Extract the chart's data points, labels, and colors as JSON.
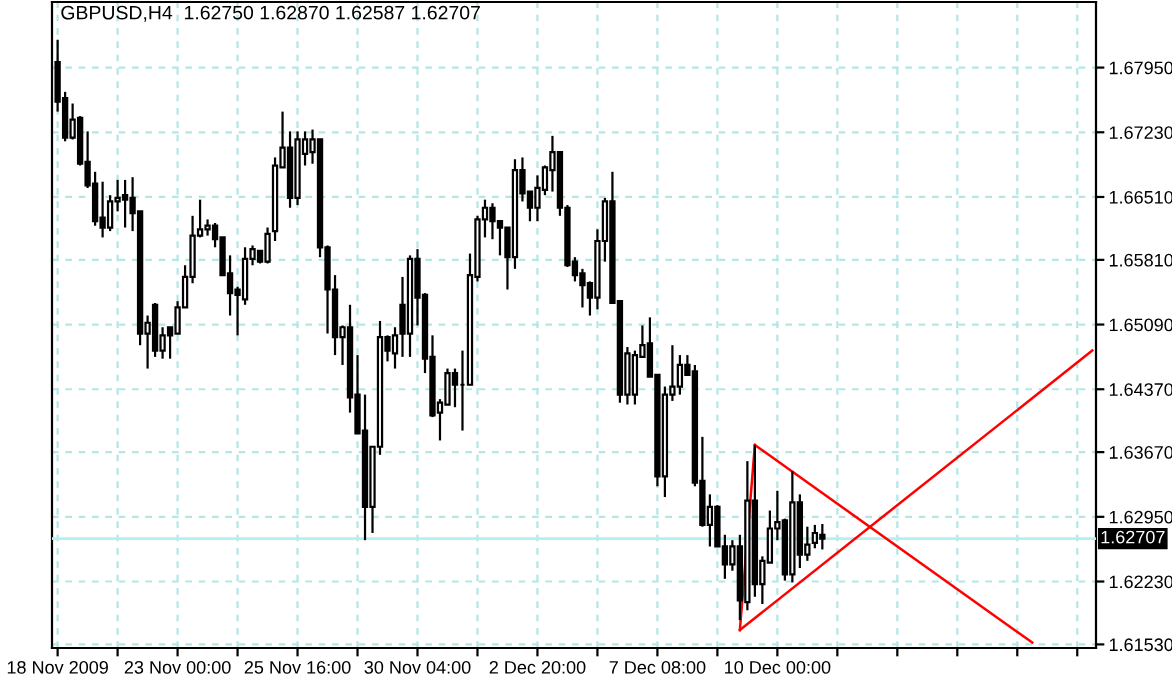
{
  "chart_data": {
    "type": "candlestick",
    "title": "GBPUSD,H4  1.62750 1.62870 1.62587 1.62707",
    "categories": [
      "18 Nov 2009",
      null,
      null,
      null,
      null,
      null,
      null,
      null,
      null,
      null,
      null,
      null,
      null,
      null,
      null,
      null,
      "23 Nov 00:00",
      null,
      null,
      null,
      null,
      null,
      null,
      null,
      null,
      null,
      null,
      null,
      null,
      null,
      null,
      null,
      "25 Nov 16:00",
      null,
      null,
      null,
      null,
      null,
      null,
      null,
      null,
      null,
      null,
      null,
      null,
      null,
      null,
      null,
      "30 Nov 04:00",
      null,
      null,
      null,
      null,
      null,
      null,
      null,
      null,
      null,
      null,
      null,
      null,
      null,
      null,
      null,
      "2 Dec 20:00",
      null,
      null,
      null,
      null,
      null,
      null,
      null,
      null,
      null,
      null,
      null,
      null,
      null,
      null,
      null,
      "7 Dec 08:00",
      null,
      null,
      null,
      null,
      null,
      null,
      null,
      null,
      null,
      null,
      null,
      null,
      null,
      null,
      null,
      "10 Dec 00:00",
      null,
      null,
      null,
      null,
      null,
      null,
      null,
      null,
      null,
      null,
      null,
      null,
      null,
      null,
      null,
      null,
      null,
      null,
      null,
      null,
      null,
      null,
      null,
      null,
      null,
      null,
      null,
      null,
      null,
      null,
      null,
      null,
      null,
      null,
      null,
      null,
      null,
      null,
      null,
      null,
      null,
      null
    ],
    "ohlc": [
      [
        1.6801,
        1.6826,
        1.6746,
        1.6757
      ],
      [
        1.6761,
        1.6768,
        1.6713,
        1.6717
      ],
      [
        1.6717,
        1.6755,
        1.6715,
        1.6737
      ],
      [
        1.6739,
        1.6741,
        1.6686,
        1.6688
      ],
      [
        1.669,
        1.6724,
        1.6661,
        1.6664
      ],
      [
        1.6666,
        1.6679,
        1.6619,
        1.6624
      ],
      [
        1.6628,
        1.6668,
        1.6606,
        1.6617
      ],
      [
        1.6617,
        1.6653,
        1.6613,
        1.6646
      ],
      [
        1.6646,
        1.667,
        1.6635,
        1.665
      ],
      [
        1.6653,
        1.667,
        1.6617,
        1.6648
      ],
      [
        1.665,
        1.6673,
        1.6613,
        1.6633
      ],
      [
        1.6635,
        1.6635,
        1.6486,
        1.6499
      ],
      [
        1.6499,
        1.6519,
        1.646,
        1.6511
      ],
      [
        1.6531,
        1.6533,
        1.6473,
        1.648
      ],
      [
        1.648,
        1.6506,
        1.6471,
        1.6497
      ],
      [
        1.6506,
        1.6506,
        1.6471,
        1.6497
      ],
      [
        1.6499,
        1.6535,
        1.6499,
        1.6528
      ],
      [
        1.6528,
        1.6575,
        1.6528,
        1.6562
      ],
      [
        1.6562,
        1.663,
        1.6555,
        1.6608
      ],
      [
        1.6608,
        1.6648,
        1.6606,
        1.6615
      ],
      [
        1.6615,
        1.6626,
        1.6608,
        1.6619
      ],
      [
        1.6619,
        1.6622,
        1.6595,
        1.6604
      ],
      [
        1.6606,
        1.6606,
        1.6564,
        1.6564
      ],
      [
        1.6566,
        1.6586,
        1.6519,
        1.6544
      ],
      [
        1.6548,
        1.6551,
        1.6497,
        1.6542
      ],
      [
        1.6537,
        1.6595,
        1.6531,
        1.6582
      ],
      [
        1.6582,
        1.6597,
        1.6575,
        1.6593
      ],
      [
        1.6591,
        1.6591,
        1.6577,
        1.6579
      ],
      [
        1.6579,
        1.6617,
        1.6577,
        1.661
      ],
      [
        1.6613,
        1.6695,
        1.6602,
        1.6686
      ],
      [
        1.6684,
        1.6746,
        1.6684,
        1.6706
      ],
      [
        1.6706,
        1.6724,
        1.6639,
        1.665
      ],
      [
        1.665,
        1.6724,
        1.6642,
        1.6715
      ],
      [
        1.6699,
        1.6724,
        1.6686,
        1.6715
      ],
      [
        1.6701,
        1.6726,
        1.6688,
        1.6715
      ],
      [
        1.6715,
        1.6715,
        1.6584,
        1.6595
      ],
      [
        1.6595,
        1.6597,
        1.6499,
        1.6548
      ],
      [
        1.6548,
        1.6564,
        1.6475,
        1.6495
      ],
      [
        1.6495,
        1.6508,
        1.6464,
        1.6506
      ],
      [
        1.6506,
        1.6531,
        1.6411,
        1.6428
      ],
      [
        1.6431,
        1.6475,
        1.6388,
        1.6388
      ],
      [
        1.6391,
        1.6431,
        1.6269,
        1.6306
      ],
      [
        1.6306,
        1.6373,
        1.6277,
        1.6373
      ],
      [
        1.6373,
        1.6513,
        1.6364,
        1.6495
      ],
      [
        1.6495,
        1.6497,
        1.6468,
        1.648
      ],
      [
        1.6477,
        1.6506,
        1.646,
        1.6497
      ],
      [
        1.6531,
        1.6562,
        1.6473,
        1.6499
      ],
      [
        1.6499,
        1.6586,
        1.6473,
        1.6582
      ],
      [
        1.6582,
        1.6593,
        1.6508,
        1.6539
      ],
      [
        1.6542,
        1.6544,
        1.6455,
        1.6471
      ],
      [
        1.6473,
        1.6497,
        1.6406,
        1.6408
      ],
      [
        1.6411,
        1.6426,
        1.638,
        1.6422
      ],
      [
        1.642,
        1.646,
        1.642,
        1.6455
      ],
      [
        1.6455,
        1.646,
        1.6417,
        1.6442
      ],
      [
        1.6442,
        1.648,
        1.6391,
        1.6442
      ],
      [
        1.6442,
        1.6588,
        1.6442,
        1.6564
      ],
      [
        1.6562,
        1.663,
        1.6557,
        1.6626
      ],
      [
        1.6626,
        1.6648,
        1.6606,
        1.6639
      ],
      [
        1.6639,
        1.6644,
        1.6604,
        1.6624
      ],
      [
        1.6624,
        1.6624,
        1.6586,
        1.6617
      ],
      [
        1.6617,
        1.6617,
        1.6548,
        1.6584
      ],
      [
        1.6584,
        1.6693,
        1.6571,
        1.6681
      ],
      [
        1.6681,
        1.6695,
        1.6646,
        1.6655
      ],
      [
        1.6657,
        1.6657,
        1.6624,
        1.6639
      ],
      [
        1.6639,
        1.6675,
        1.6624,
        1.6661
      ],
      [
        1.6659,
        1.6686,
        1.6653,
        1.6684
      ],
      [
        1.6681,
        1.6719,
        1.6657,
        1.6701
      ],
      [
        1.6701,
        1.6701,
        1.663,
        1.6639
      ],
      [
        1.6639,
        1.6642,
        1.6573,
        1.6575
      ],
      [
        1.6579,
        1.6584,
        1.6557,
        1.6564
      ],
      [
        1.6566,
        1.6571,
        1.6528,
        1.6553
      ],
      [
        1.6555,
        1.6557,
        1.6519,
        1.6539
      ],
      [
        1.6539,
        1.6615,
        1.6526,
        1.6602
      ],
      [
        1.6602,
        1.665,
        1.6579,
        1.6646
      ],
      [
        1.6646,
        1.6679,
        1.6533,
        1.6533
      ],
      [
        1.6535,
        1.6535,
        1.6422,
        1.6431
      ],
      [
        1.6431,
        1.6484,
        1.642,
        1.6477
      ],
      [
        1.6431,
        1.648,
        1.642,
        1.6475
      ],
      [
        1.6473,
        1.6508,
        1.6473,
        1.6486
      ],
      [
        1.6488,
        1.6517,
        1.6451,
        1.6451
      ],
      [
        1.6453,
        1.6453,
        1.6329,
        1.634
      ],
      [
        1.634,
        1.644,
        1.6317,
        1.6431
      ],
      [
        1.6431,
        1.6486,
        1.6424,
        1.644
      ],
      [
        1.644,
        1.6475,
        1.6431,
        1.6464
      ],
      [
        1.6464,
        1.6475,
        1.6453,
        1.6453
      ],
      [
        1.6457,
        1.6464,
        1.6329,
        1.6333
      ],
      [
        1.6335,
        1.6384,
        1.6284,
        1.6286
      ],
      [
        1.6286,
        1.632,
        1.6262,
        1.6306
      ],
      [
        1.6306,
        1.6308,
        1.6262,
        1.6262
      ],
      [
        1.6262,
        1.6275,
        1.6226,
        1.6242
      ],
      [
        1.6242,
        1.6269,
        1.6235,
        1.6262
      ],
      [
        1.6262,
        1.6275,
        1.618,
        1.6202
      ],
      [
        1.62,
        1.6357,
        1.6191,
        1.6313
      ],
      [
        1.6313,
        1.6375,
        1.6206,
        1.622
      ],
      [
        1.622,
        1.6251,
        1.6198,
        1.6246
      ],
      [
        1.6244,
        1.6302,
        1.6244,
        1.6282
      ],
      [
        1.6282,
        1.6324,
        1.6269,
        1.6289
      ],
      [
        1.6291,
        1.6293,
        1.6224,
        1.6231
      ],
      [
        1.6231,
        1.6346,
        1.6222,
        1.6311
      ],
      [
        1.6311,
        1.632,
        1.6238,
        1.6253
      ],
      [
        1.6253,
        1.6284,
        1.6246,
        1.6264
      ],
      [
        1.6266,
        1.6286,
        1.626,
        1.6277
      ],
      [
        1.6275,
        1.6287,
        1.62587,
        1.62707
      ],
      null,
      null,
      null,
      null,
      null,
      null,
      null,
      null,
      null,
      null,
      null,
      null,
      null,
      null,
      null,
      null,
      null,
      null,
      null,
      null,
      null,
      null,
      null,
      null,
      null,
      null,
      null,
      null,
      null,
      null,
      null,
      null,
      null,
      null,
      null,
      null
    ],
    "series": [
      {
        "type": "line",
        "color": "#ff0000",
        "values": [
          null,
          null,
          null,
          null,
          null,
          null,
          null,
          null,
          null,
          null,
          null,
          null,
          null,
          null,
          null,
          null,
          null,
          null,
          null,
          null,
          null,
          null,
          null,
          null,
          null,
          null,
          null,
          null,
          null,
          null,
          null,
          null,
          null,
          null,
          null,
          null,
          null,
          null,
          null,
          null,
          null,
          null,
          null,
          null,
          null,
          null,
          null,
          null,
          null,
          null,
          null,
          null,
          null,
          null,
          null,
          null,
          null,
          null,
          null,
          null,
          null,
          null,
          null,
          null,
          null,
          null,
          null,
          null,
          null,
          null,
          null,
          null,
          null,
          null,
          null,
          null,
          null,
          null,
          null,
          null,
          null,
          null,
          null,
          null,
          null,
          null,
          null,
          null,
          null,
          null,
          null,
          1.6169,
          null,
          null,
          null,
          null,
          null,
          null,
          null,
          null,
          null,
          null,
          null,
          null,
          null,
          null,
          null,
          null,
          null,
          null,
          null,
          null,
          null,
          null,
          null,
          null,
          null,
          null,
          null,
          null,
          null,
          null,
          null,
          null,
          null,
          null,
          null,
          null,
          null,
          null,
          null,
          null,
          null,
          null,
          null,
          null,
          null,
          null,
          1.648
        ]
      },
      {
        "type": "line",
        "color": "#ff0000",
        "values": [
          null,
          null,
          null,
          null,
          null,
          null,
          null,
          null,
          null,
          null,
          null,
          null,
          null,
          null,
          null,
          null,
          null,
          null,
          null,
          null,
          null,
          null,
          null,
          null,
          null,
          null,
          null,
          null,
          null,
          null,
          null,
          null,
          null,
          null,
          null,
          null,
          null,
          null,
          null,
          null,
          null,
          null,
          null,
          null,
          null,
          null,
          null,
          null,
          null,
          null,
          null,
          null,
          null,
          null,
          null,
          null,
          null,
          null,
          null,
          null,
          null,
          null,
          null,
          null,
          null,
          null,
          null,
          null,
          null,
          null,
          null,
          null,
          null,
          null,
          null,
          null,
          null,
          null,
          null,
          null,
          null,
          null,
          null,
          null,
          null,
          null,
          null,
          null,
          null,
          null,
          null,
          null,
          null,
          1.6375,
          null,
          null,
          null,
          null,
          null,
          null,
          null,
          null,
          null,
          null,
          null,
          null,
          null,
          null,
          null,
          null,
          null,
          null,
          null,
          null,
          null,
          null,
          null,
          null,
          null,
          null,
          null,
          null,
          null,
          null,
          null,
          null,
          null,
          null,
          null,
          null,
          1.6155,
          null,
          null,
          null,
          null,
          null,
          null,
          null,
          null
        ]
      },
      {
        "type": "line",
        "color": "#ff0000",
        "values": [
          null,
          null,
          null,
          null,
          null,
          null,
          null,
          null,
          null,
          null,
          null,
          null,
          null,
          null,
          null,
          null,
          null,
          null,
          null,
          null,
          null,
          null,
          null,
          null,
          null,
          null,
          null,
          null,
          null,
          null,
          null,
          null,
          null,
          null,
          null,
          null,
          null,
          null,
          null,
          null,
          null,
          null,
          null,
          null,
          null,
          null,
          null,
          null,
          null,
          null,
          null,
          null,
          null,
          null,
          null,
          null,
          null,
          null,
          null,
          null,
          null,
          null,
          null,
          null,
          null,
          null,
          null,
          null,
          null,
          null,
          null,
          null,
          null,
          null,
          null,
          null,
          null,
          null,
          null,
          null,
          null,
          null,
          null,
          null,
          null,
          null,
          null,
          null,
          null,
          null,
          null,
          1.6169,
          null,
          1.6375,
          null,
          null,
          null,
          null,
          null,
          null,
          null,
          null,
          null,
          null,
          null,
          null,
          null,
          null,
          null,
          null,
          null,
          null,
          null,
          null,
          null,
          null,
          null,
          null,
          null,
          null,
          null,
          null,
          null,
          null,
          null,
          null,
          null,
          null,
          null,
          null,
          null,
          null,
          null,
          null,
          null,
          null,
          null,
          null,
          null
        ]
      }
    ],
    "ylim": [
      1.6149,
      1.6868
    ],
    "yticks": [
      {
        "value": 1.6795,
        "label": "1.67950"
      },
      {
        "value": 1.6723,
        "label": "1.67230"
      },
      {
        "value": 1.6651,
        "label": "1.66510"
      },
      {
        "value": 1.6581,
        "label": "1.65810"
      },
      {
        "value": 1.6509,
        "label": "1.65090"
      },
      {
        "value": 1.6437,
        "label": "1.64370"
      },
      {
        "value": 1.6367,
        "label": "1.63670"
      },
      {
        "value": 1.6295,
        "label": "1.62950"
      },
      {
        "value": 1.6223,
        "label": "1.62230"
      },
      {
        "value": 1.6153,
        "label": "1.61530"
      }
    ],
    "ref_lines": [
      {
        "axis": "y",
        "value": 1.62707,
        "label": "1.62707",
        "color": "#b4f0f0"
      }
    ],
    "grid": true
  }
}
